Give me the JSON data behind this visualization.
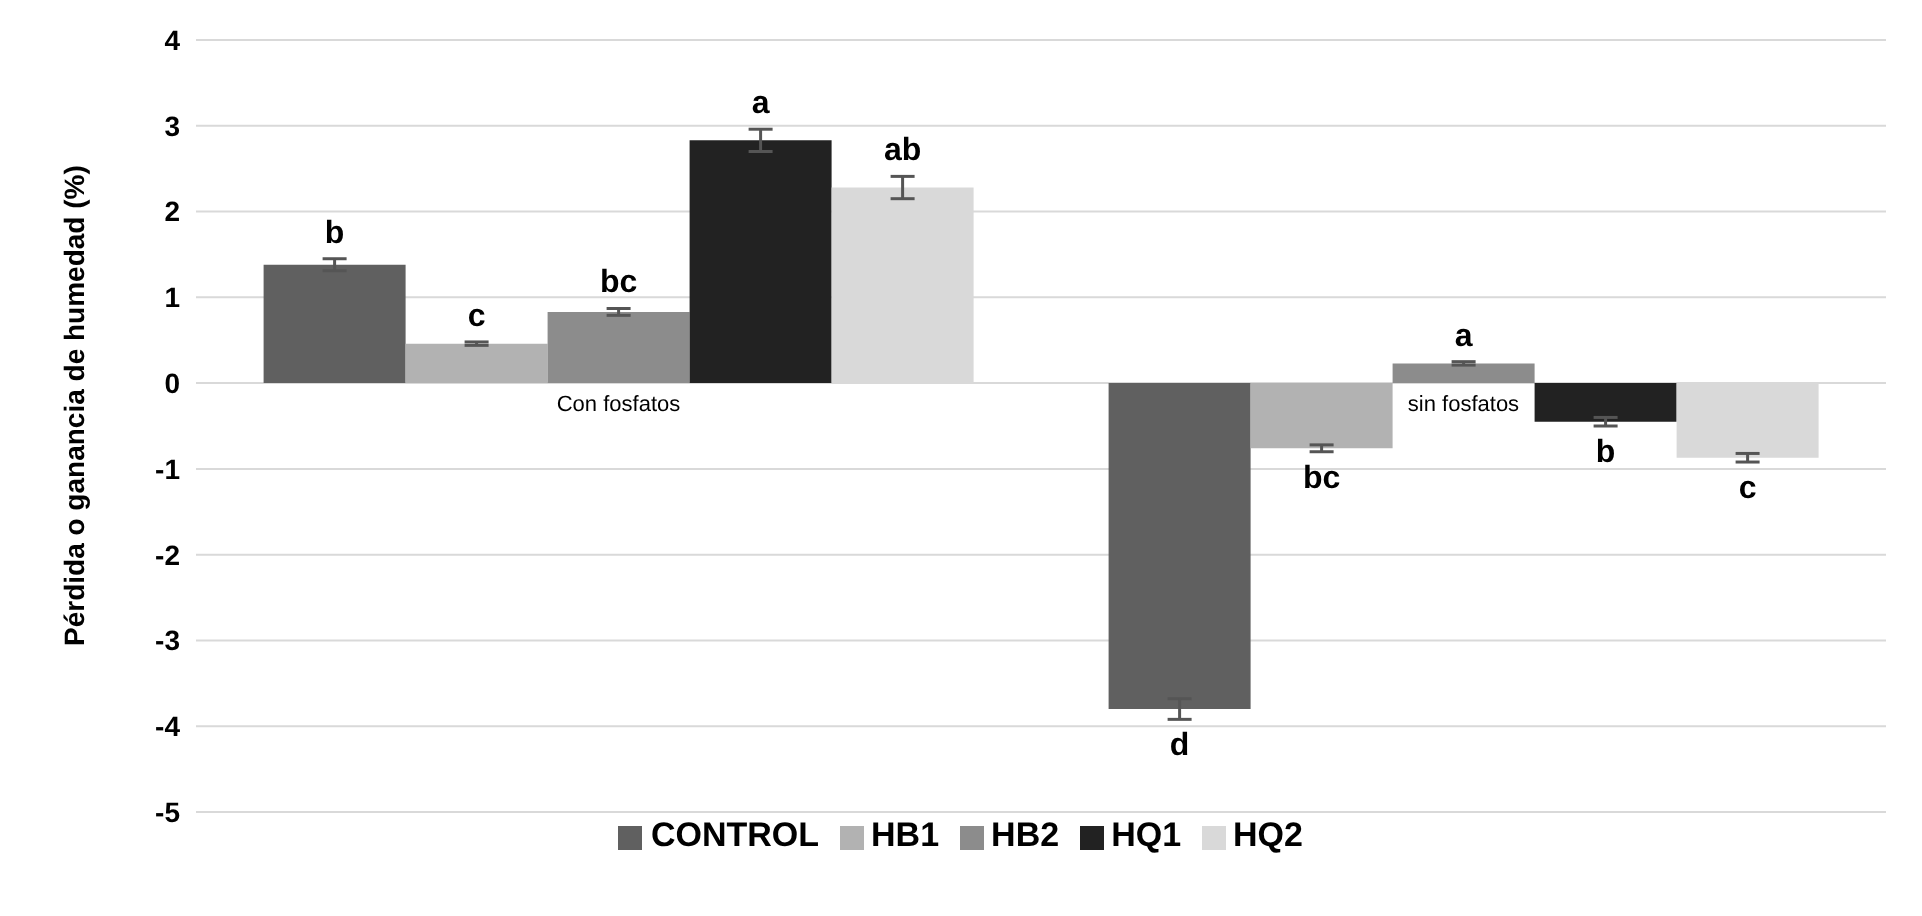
{
  "chart_data": {
    "type": "bar",
    "ylabel": "Pérdida o ganancia de humedad (%)",
    "categories": [
      "Con fosfatos",
      "sin fosfatos"
    ],
    "series": [
      {
        "name": "CONTROL",
        "color": "#606060",
        "values": [
          1.38,
          -3.8
        ],
        "errors": [
          0.07,
          0.12
        ],
        "value_labels": [
          "b",
          "d"
        ]
      },
      {
        "name": "HB1",
        "color": "#b2b2b2",
        "values": [
          0.46,
          -0.76
        ],
        "errors": [
          0.02,
          0.04
        ],
        "value_labels": [
          "c",
          "bc"
        ]
      },
      {
        "name": "HB2",
        "color": "#8c8c8c",
        "values": [
          0.83,
          0.23
        ],
        "errors": [
          0.04,
          0.02
        ],
        "value_labels": [
          "bc",
          "a"
        ]
      },
      {
        "name": "HQ1",
        "color": "#222222",
        "values": [
          2.83,
          -0.45
        ],
        "errors": [
          0.13,
          0.05
        ],
        "value_labels": [
          "a",
          "b"
        ]
      },
      {
        "name": "HQ2",
        "color": "#d9d9d9",
        "values": [
          2.28,
          -0.87
        ],
        "errors": [
          0.13,
          0.05
        ],
        "value_labels": [
          "ab",
          "c"
        ]
      }
    ],
    "ylim": [
      -5,
      4
    ],
    "yticks": [
      -5,
      -4,
      -3,
      -2,
      -1,
      0,
      1,
      2,
      3,
      4
    ],
    "grid": "y",
    "legend": "bottom"
  }
}
